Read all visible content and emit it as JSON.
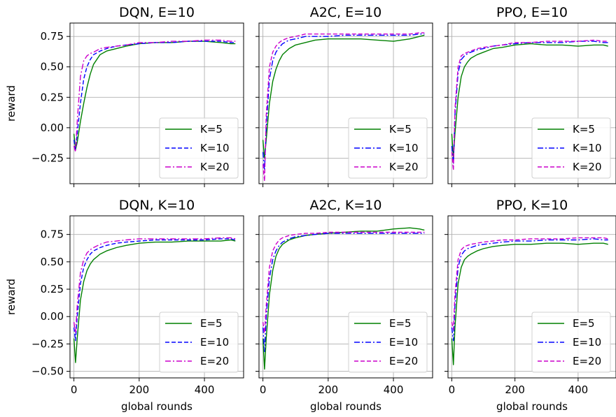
{
  "figure": {
    "y_axis_label": "reward",
    "x_axis_label": "global rounds"
  },
  "chart_data": [
    {
      "type": "line",
      "title": "DQN, E=10",
      "xlabel": "",
      "ylabel": "reward",
      "xlim": [
        -12,
        520
      ],
      "ylim": [
        -0.46,
        0.86
      ],
      "x_ticks": [
        0,
        200,
        400
      ],
      "y_ticks": [
        -0.25,
        0.0,
        0.25,
        0.5,
        0.75
      ],
      "y_tick_labels": [
        "−0.25",
        "0.00",
        "0.25",
        "0.50",
        "0.75"
      ],
      "x_tick_labels": [],
      "legend": "lower right",
      "grid": true,
      "series": [
        {
          "name": "K=5",
          "color": "#008000",
          "dash": "solid",
          "x": [
            0,
            5,
            10,
            20,
            30,
            40,
            50,
            60,
            80,
            100,
            130,
            160,
            200,
            250,
            300,
            350,
            400,
            450,
            480,
            495
          ],
          "y": [
            -0.05,
            -0.18,
            -0.12,
            0.05,
            0.2,
            0.33,
            0.44,
            0.52,
            0.6,
            0.63,
            0.65,
            0.67,
            0.69,
            0.7,
            0.7,
            0.71,
            0.71,
            0.7,
            0.69,
            0.69
          ]
        },
        {
          "name": "K=10",
          "color": "#0000ff",
          "dash": "6,3",
          "x": [
            0,
            5,
            10,
            20,
            30,
            40,
            50,
            60,
            80,
            100,
            130,
            160,
            200,
            250,
            300,
            350,
            400,
            450,
            480,
            495
          ],
          "y": [
            -0.1,
            -0.18,
            -0.05,
            0.2,
            0.4,
            0.5,
            0.56,
            0.6,
            0.63,
            0.65,
            0.67,
            0.68,
            0.69,
            0.7,
            0.7,
            0.71,
            0.71,
            0.71,
            0.7,
            0.7
          ]
        },
        {
          "name": "K=20",
          "color": "#cc00cc",
          "dash": "8,3,2,3",
          "x": [
            0,
            5,
            10,
            20,
            30,
            40,
            50,
            60,
            80,
            100,
            130,
            160,
            200,
            250,
            300,
            350,
            400,
            450,
            480,
            495
          ],
          "y": [
            -0.15,
            -0.2,
            0.05,
            0.42,
            0.55,
            0.59,
            0.61,
            0.62,
            0.65,
            0.66,
            0.67,
            0.68,
            0.7,
            0.7,
            0.71,
            0.71,
            0.72,
            0.72,
            0.71,
            0.71
          ]
        }
      ]
    },
    {
      "type": "line",
      "title": "A2C, E=10",
      "xlabel": "",
      "ylabel": "",
      "xlim": [
        -12,
        520
      ],
      "ylim": [
        -0.46,
        0.86
      ],
      "x_ticks": [
        0,
        200,
        400
      ],
      "y_ticks": [
        -0.25,
        0.0,
        0.25,
        0.5,
        0.75
      ],
      "y_tick_labels": [],
      "x_tick_labels": [],
      "legend": "lower right",
      "grid": true,
      "series": [
        {
          "name": "K=5",
          "color": "#008000",
          "dash": "solid",
          "x": [
            0,
            5,
            10,
            20,
            30,
            40,
            50,
            60,
            80,
            100,
            130,
            160,
            200,
            250,
            300,
            350,
            400,
            450,
            480,
            495
          ],
          "y": [
            -0.1,
            -0.25,
            -0.1,
            0.2,
            0.38,
            0.48,
            0.55,
            0.6,
            0.65,
            0.68,
            0.7,
            0.72,
            0.73,
            0.73,
            0.73,
            0.72,
            0.71,
            0.73,
            0.75,
            0.76
          ]
        },
        {
          "name": "K=10",
          "color": "#0000ff",
          "dash": "8,3,2,3",
          "x": [
            0,
            5,
            10,
            20,
            30,
            40,
            50,
            60,
            80,
            100,
            130,
            160,
            200,
            250,
            300,
            350,
            400,
            450,
            480,
            495
          ],
          "y": [
            -0.2,
            -0.35,
            0.0,
            0.4,
            0.55,
            0.62,
            0.66,
            0.69,
            0.72,
            0.73,
            0.75,
            0.75,
            0.75,
            0.76,
            0.76,
            0.76,
            0.76,
            0.76,
            0.77,
            0.77
          ]
        },
        {
          "name": "K=20",
          "color": "#cc00cc",
          "dash": "6,3",
          "x": [
            0,
            5,
            10,
            20,
            30,
            40,
            50,
            60,
            80,
            100,
            130,
            160,
            200,
            250,
            300,
            350,
            400,
            450,
            480,
            495
          ],
          "y": [
            -0.3,
            -0.44,
            0.1,
            0.5,
            0.62,
            0.67,
            0.7,
            0.72,
            0.74,
            0.75,
            0.77,
            0.77,
            0.77,
            0.77,
            0.77,
            0.77,
            0.77,
            0.77,
            0.78,
            0.78
          ]
        }
      ]
    },
    {
      "type": "line",
      "title": "PPO, E=10",
      "xlabel": "",
      "ylabel": "",
      "xlim": [
        -12,
        520
      ],
      "ylim": [
        -0.46,
        0.86
      ],
      "x_ticks": [
        0,
        200,
        400
      ],
      "y_ticks": [
        -0.25,
        0.0,
        0.25,
        0.5,
        0.75
      ],
      "y_tick_labels": [],
      "x_tick_labels": [],
      "legend": "lower right",
      "grid": true,
      "series": [
        {
          "name": "K=5",
          "color": "#008000",
          "dash": "solid",
          "x": [
            0,
            5,
            10,
            20,
            30,
            40,
            50,
            60,
            80,
            100,
            130,
            160,
            200,
            250,
            300,
            350,
            400,
            450,
            480,
            495
          ],
          "y": [
            -0.05,
            -0.25,
            -0.05,
            0.25,
            0.42,
            0.5,
            0.54,
            0.57,
            0.6,
            0.62,
            0.65,
            0.66,
            0.68,
            0.69,
            0.68,
            0.68,
            0.67,
            0.68,
            0.68,
            0.67
          ]
        },
        {
          "name": "K=10",
          "color": "#0000ff",
          "dash": "8,3,2,3",
          "x": [
            0,
            5,
            10,
            20,
            30,
            40,
            50,
            60,
            80,
            100,
            130,
            160,
            200,
            250,
            300,
            350,
            400,
            450,
            480,
            495
          ],
          "y": [
            -0.15,
            -0.3,
            0.1,
            0.45,
            0.56,
            0.59,
            0.61,
            0.62,
            0.64,
            0.65,
            0.67,
            0.68,
            0.69,
            0.7,
            0.7,
            0.7,
            0.71,
            0.71,
            0.7,
            0.7
          ]
        },
        {
          "name": "K=20",
          "color": "#cc00cc",
          "dash": "6,3",
          "x": [
            0,
            5,
            10,
            20,
            30,
            40,
            50,
            60,
            80,
            100,
            130,
            160,
            200,
            250,
            300,
            350,
            400,
            450,
            480,
            495
          ],
          "y": [
            -0.2,
            -0.35,
            0.15,
            0.5,
            0.59,
            0.61,
            0.62,
            0.63,
            0.65,
            0.66,
            0.67,
            0.68,
            0.7,
            0.7,
            0.71,
            0.71,
            0.71,
            0.72,
            0.71,
            0.71
          ]
        }
      ]
    },
    {
      "type": "line",
      "title": "DQN, K=10",
      "xlabel": "global rounds",
      "ylabel": "reward",
      "xlim": [
        -12,
        520
      ],
      "ylim": [
        -0.56,
        0.92
      ],
      "x_ticks": [
        0,
        200,
        400
      ],
      "y_ticks": [
        -0.5,
        -0.25,
        0.0,
        0.25,
        0.5,
        0.75
      ],
      "y_tick_labels": [
        "−0.50",
        "−0.25",
        "0.00",
        "0.25",
        "0.50",
        "0.75"
      ],
      "x_tick_labels": [
        "0",
        "200",
        "400"
      ],
      "legend": "lower right",
      "grid": true,
      "series": [
        {
          "name": "E=5",
          "color": "#008000",
          "dash": "solid",
          "x": [
            0,
            5,
            10,
            20,
            30,
            40,
            50,
            60,
            80,
            100,
            130,
            160,
            200,
            250,
            300,
            350,
            400,
            450,
            480,
            495
          ],
          "y": [
            -0.2,
            -0.42,
            -0.2,
            0.15,
            0.32,
            0.42,
            0.48,
            0.52,
            0.57,
            0.6,
            0.63,
            0.65,
            0.67,
            0.68,
            0.68,
            0.69,
            0.69,
            0.69,
            0.7,
            0.69
          ]
        },
        {
          "name": "E=10",
          "color": "#0000ff",
          "dash": "6,3",
          "x": [
            0,
            5,
            10,
            20,
            30,
            40,
            50,
            60,
            80,
            100,
            130,
            160,
            200,
            250,
            300,
            350,
            400,
            450,
            480,
            495
          ],
          "y": [
            -0.1,
            -0.22,
            0.0,
            0.3,
            0.45,
            0.52,
            0.57,
            0.6,
            0.63,
            0.65,
            0.67,
            0.68,
            0.69,
            0.7,
            0.7,
            0.7,
            0.7,
            0.71,
            0.71,
            0.7
          ]
        },
        {
          "name": "E=20",
          "color": "#cc00cc",
          "dash": "8,3,2,3",
          "x": [
            0,
            5,
            10,
            20,
            30,
            40,
            50,
            60,
            80,
            100,
            130,
            160,
            200,
            250,
            300,
            350,
            400,
            450,
            480,
            495
          ],
          "y": [
            -0.05,
            -0.15,
            0.1,
            0.4,
            0.52,
            0.58,
            0.61,
            0.63,
            0.66,
            0.68,
            0.69,
            0.7,
            0.71,
            0.71,
            0.71,
            0.71,
            0.71,
            0.72,
            0.72,
            0.71
          ]
        }
      ]
    },
    {
      "type": "line",
      "title": "A2C, K=10",
      "xlabel": "global rounds",
      "ylabel": "",
      "xlim": [
        -12,
        520
      ],
      "ylim": [
        -0.56,
        0.92
      ],
      "x_ticks": [
        0,
        200,
        400
      ],
      "y_ticks": [
        -0.5,
        -0.25,
        0.0,
        0.25,
        0.5,
        0.75
      ],
      "y_tick_labels": [],
      "x_tick_labels": [
        "0",
        "200",
        "400"
      ],
      "legend": "lower right",
      "grid": true,
      "series": [
        {
          "name": "E=5",
          "color": "#008000",
          "dash": "solid",
          "x": [
            0,
            5,
            10,
            20,
            30,
            40,
            50,
            60,
            80,
            100,
            130,
            160,
            200,
            250,
            300,
            350,
            400,
            450,
            480,
            495
          ],
          "y": [
            -0.2,
            -0.48,
            -0.2,
            0.2,
            0.42,
            0.55,
            0.62,
            0.66,
            0.7,
            0.72,
            0.74,
            0.75,
            0.76,
            0.77,
            0.78,
            0.78,
            0.8,
            0.81,
            0.8,
            0.79
          ]
        },
        {
          "name": "E=10",
          "color": "#0000ff",
          "dash": "8,3,2,3",
          "x": [
            0,
            5,
            10,
            20,
            30,
            40,
            50,
            60,
            80,
            100,
            130,
            160,
            200,
            250,
            300,
            350,
            400,
            450,
            480,
            495
          ],
          "y": [
            -0.1,
            -0.32,
            0.0,
            0.35,
            0.52,
            0.6,
            0.65,
            0.68,
            0.71,
            0.73,
            0.74,
            0.75,
            0.76,
            0.76,
            0.76,
            0.76,
            0.76,
            0.76,
            0.76,
            0.76
          ]
        },
        {
          "name": "E=20",
          "color": "#cc00cc",
          "dash": "6,3",
          "x": [
            0,
            5,
            10,
            20,
            30,
            40,
            50,
            60,
            80,
            100,
            130,
            160,
            200,
            250,
            300,
            350,
            400,
            450,
            480,
            495
          ],
          "y": [
            -0.05,
            -0.15,
            0.1,
            0.45,
            0.6,
            0.66,
            0.7,
            0.72,
            0.74,
            0.75,
            0.76,
            0.76,
            0.77,
            0.77,
            0.77,
            0.77,
            0.77,
            0.77,
            0.77,
            0.77
          ]
        }
      ]
    },
    {
      "type": "line",
      "title": "PPO, K=10",
      "xlabel": "global rounds",
      "ylabel": "",
      "xlim": [
        -12,
        520
      ],
      "ylim": [
        -0.56,
        0.92
      ],
      "x_ticks": [
        0,
        200,
        400
      ],
      "y_ticks": [
        -0.5,
        -0.25,
        0.0,
        0.25,
        0.5,
        0.75
      ],
      "y_tick_labels": [],
      "x_tick_labels": [
        "0",
        "200",
        "400"
      ],
      "legend": "lower right",
      "grid": true,
      "series": [
        {
          "name": "E=5",
          "color": "#008000",
          "dash": "solid",
          "x": [
            0,
            5,
            10,
            20,
            30,
            40,
            50,
            60,
            80,
            100,
            130,
            160,
            200,
            250,
            300,
            350,
            400,
            450,
            480,
            495
          ],
          "y": [
            -0.2,
            -0.44,
            -0.1,
            0.3,
            0.45,
            0.52,
            0.55,
            0.57,
            0.6,
            0.62,
            0.64,
            0.65,
            0.66,
            0.66,
            0.67,
            0.67,
            0.66,
            0.67,
            0.67,
            0.66
          ]
        },
        {
          "name": "E=10",
          "color": "#0000ff",
          "dash": "8,3,2,3",
          "x": [
            0,
            5,
            10,
            20,
            30,
            40,
            50,
            60,
            80,
            100,
            130,
            160,
            200,
            250,
            300,
            350,
            400,
            450,
            480,
            495
          ],
          "y": [
            -0.1,
            -0.22,
            0.1,
            0.45,
            0.56,
            0.6,
            0.62,
            0.63,
            0.65,
            0.66,
            0.67,
            0.68,
            0.69,
            0.69,
            0.7,
            0.7,
            0.7,
            0.71,
            0.7,
            0.7
          ]
        },
        {
          "name": "E=20",
          "color": "#cc00cc",
          "dash": "6,3",
          "x": [
            0,
            5,
            10,
            20,
            30,
            40,
            50,
            60,
            80,
            100,
            130,
            160,
            200,
            250,
            300,
            350,
            400,
            450,
            480,
            495
          ],
          "y": [
            -0.05,
            -0.12,
            0.2,
            0.52,
            0.61,
            0.64,
            0.65,
            0.66,
            0.67,
            0.68,
            0.69,
            0.7,
            0.7,
            0.71,
            0.71,
            0.71,
            0.72,
            0.72,
            0.72,
            0.71
          ]
        }
      ]
    }
  ]
}
